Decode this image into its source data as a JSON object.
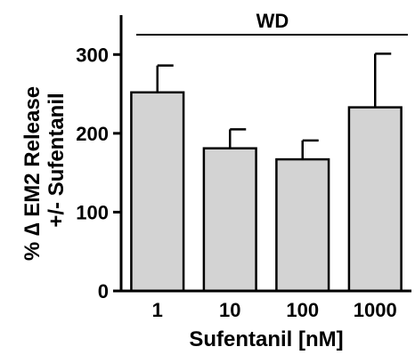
{
  "chart_data": {
    "type": "bar",
    "title": "",
    "group_label": "WD",
    "categories": [
      "1",
      "10",
      "100",
      "1000"
    ],
    "values": [
      252,
      181,
      167,
      233
    ],
    "error_upper": [
      286,
      205,
      191,
      301
    ],
    "ylabel_line1": "% ∆ EM2 Release",
    "ylabel_line2": "+/- Sufentanil",
    "xlabel": "Sufentanil [nM]",
    "ylim": [
      0,
      350
    ],
    "yticks": [
      0,
      100,
      200,
      300
    ],
    "ytick_labels": [
      "0",
      "100",
      "200",
      "300"
    ],
    "grid": false,
    "legend": "none",
    "bar_color": "#d3d3d3",
    "edge_color": "#000000"
  }
}
